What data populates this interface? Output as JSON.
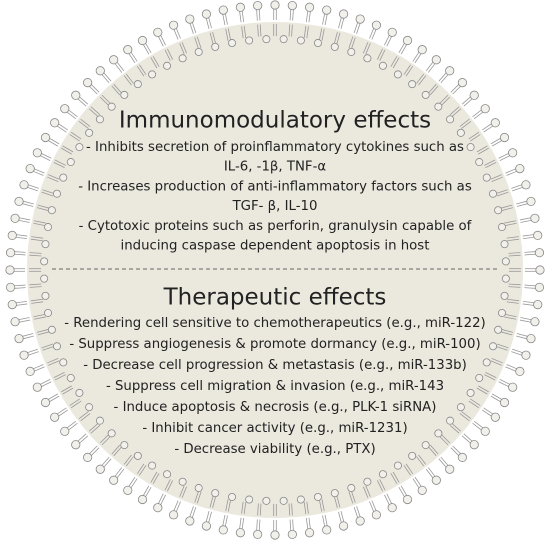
{
  "sections": [
    {
      "title": "Immunomodulatory effects",
      "items": [
        [
          "-   Inhibits secretion of proinflammatory cytokines such as",
          "IL-6, -1β, TNF-α"
        ],
        [
          "- Increases production of anti-inflammatory factors such as",
          "TGF- β, IL-10"
        ],
        [
          "- Cytotoxic proteins such as perforin, granulysin capable of",
          "inducing caspase dependent apoptosis in host"
        ]
      ]
    },
    {
      "title": "Therapeutic effects",
      "items": [
        [
          "-   Rendering cell sensitive to chemotherapeutics (e.g., miR-122)"
        ],
        [
          "-   Suppress angiogenesis & promote dormancy (e.g., miR-100)"
        ],
        [
          "-   Decrease cell progression & metastasis (e.g., miR-133b)"
        ],
        [
          "-   Suppress cell migration & invasion (e.g., miR-143"
        ],
        [
          "-   Induce apoptosis & necrosis (e.g., PLK-1 siRNA)"
        ],
        [
          "-   Inhibit cancer activity (e.g., miR-1231)"
        ],
        [
          "-   Decrease viability (e.g., PTX)"
        ]
      ]
    }
  ]
}
